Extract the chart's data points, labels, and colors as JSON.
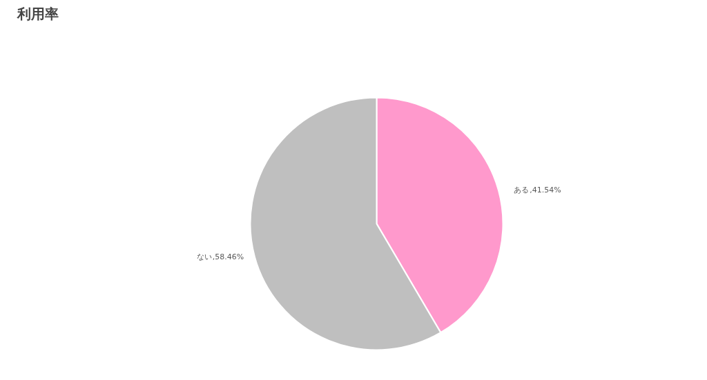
{
  "chart_data": {
    "type": "pie",
    "title": "利用率",
    "categories": [
      "ある",
      "ない"
    ],
    "values": [
      41.54,
      58.46
    ],
    "colors": [
      "#ff99cc",
      "#bfbfbf"
    ],
    "value_labels": [
      ",41.54%",
      ",58.46%"
    ],
    "legend": false
  }
}
